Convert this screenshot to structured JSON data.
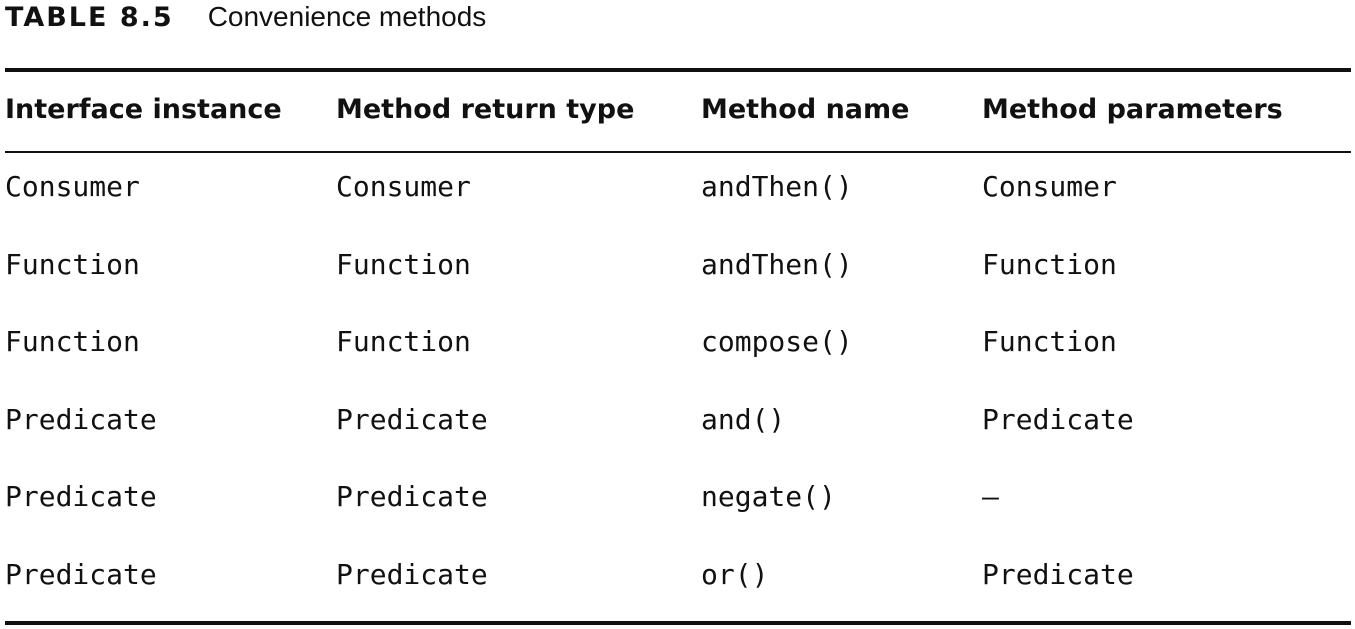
{
  "caption": {
    "label": "TABLE 8.5",
    "title": "Convenience methods"
  },
  "table": {
    "headers": [
      "Interface instance",
      "Method return type",
      "Method name",
      "Method parameters"
    ],
    "rows": [
      [
        "Consumer",
        "Consumer",
        "andThen()",
        "Consumer"
      ],
      [
        "Function",
        "Function",
        "andThen()",
        "Function"
      ],
      [
        "Function",
        "Function",
        "compose()",
        "Function"
      ],
      [
        "Predicate",
        "Predicate",
        "and()",
        "Predicate"
      ],
      [
        "Predicate",
        "Predicate",
        "negate()",
        "—"
      ],
      [
        "Predicate",
        "Predicate",
        "or()",
        "Predicate"
      ]
    ]
  }
}
